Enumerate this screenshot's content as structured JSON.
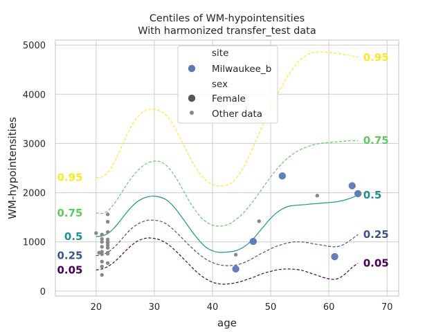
{
  "chart_data": {
    "type": "line",
    "title": "Centiles of WM-hypointensities",
    "subtitle": "With harmonized transfer_test data",
    "xlabel": "age",
    "ylabel": "WM-hypointensities",
    "xlim": [
      13,
      72
    ],
    "ylim": [
      -100,
      5100
    ],
    "xticks": [
      20,
      30,
      40,
      50,
      60,
      70
    ],
    "yticks": [
      0,
      1000,
      2000,
      3000,
      4000,
      5000
    ],
    "grid": true,
    "centiles": [
      {
        "label": "0.05",
        "color": "#440154",
        "dash": true,
        "x": [
          20,
          21,
          22,
          23,
          24,
          25,
          26,
          27,
          28,
          29,
          30,
          31,
          32,
          33,
          34,
          35,
          36,
          37,
          38,
          39,
          40,
          41,
          42,
          43,
          44,
          45,
          46,
          47,
          48,
          49,
          50,
          51,
          52,
          53,
          54,
          55,
          56,
          57,
          58,
          59,
          60,
          61,
          62,
          63,
          64,
          65
        ],
        "y": [
          430,
          450,
          500,
          580,
          690,
          810,
          920,
          1010,
          1060,
          1080,
          1070,
          1040,
          980,
          890,
          780,
          660,
          540,
          420,
          320,
          240,
          180,
          150,
          140,
          150,
          170,
          200,
          240,
          280,
          330,
          370,
          400,
          430,
          445,
          450,
          445,
          430,
          400,
          360,
          320,
          280,
          250,
          240,
          280,
          370,
          480,
          570
        ]
      },
      {
        "label": "0.25",
        "color": "#3b528b",
        "dash": true,
        "x": [
          20,
          21,
          22,
          23,
          24,
          25,
          26,
          27,
          28,
          29,
          30,
          31,
          32,
          33,
          34,
          35,
          36,
          37,
          38,
          39,
          40,
          41,
          42,
          43,
          44,
          45,
          46,
          47,
          48,
          49,
          50,
          51,
          52,
          53,
          54,
          55,
          56,
          57,
          58,
          59,
          60,
          61,
          62,
          63,
          64,
          65
        ],
        "y": [
          720,
          740,
          790,
          880,
          1000,
          1140,
          1260,
          1350,
          1410,
          1440,
          1440,
          1420,
          1370,
          1280,
          1170,
          1050,
          930,
          820,
          720,
          640,
          580,
          540,
          520,
          520,
          530,
          560,
          610,
          670,
          740,
          800,
          860,
          910,
          950,
          980,
          1000,
          1000,
          990,
          970,
          950,
          930,
          910,
          900,
          920,
          980,
          1060,
          1150
        ]
      },
      {
        "label": "0.5",
        "color": "#21908d",
        "dash": false,
        "x": [
          20,
          21,
          22,
          23,
          24,
          25,
          26,
          27,
          28,
          29,
          30,
          31,
          32,
          33,
          34,
          35,
          36,
          37,
          38,
          39,
          40,
          41,
          42,
          43,
          44,
          45,
          46,
          47,
          48,
          49,
          50,
          51,
          52,
          53,
          54,
          55,
          56,
          57,
          58,
          59,
          60,
          61,
          62,
          63,
          64,
          65
        ],
        "y": [
          1110,
          1120,
          1170,
          1270,
          1410,
          1560,
          1700,
          1810,
          1880,
          1920,
          1930,
          1910,
          1860,
          1760,
          1620,
          1460,
          1290,
          1130,
          990,
          880,
          820,
          790,
          790,
          800,
          820,
          870,
          950,
          1060,
          1200,
          1340,
          1480,
          1590,
          1670,
          1720,
          1740,
          1750,
          1760,
          1770,
          1780,
          1790,
          1800,
          1810,
          1830,
          1860,
          1900,
          1950
        ]
      },
      {
        "label": "0.75",
        "color": "#5ec962",
        "dash": true,
        "x": [
          20,
          21,
          22,
          23,
          24,
          25,
          26,
          27,
          28,
          29,
          30,
          31,
          32,
          33,
          34,
          35,
          36,
          37,
          38,
          39,
          40,
          41,
          42,
          43,
          44,
          45,
          46,
          47,
          48,
          49,
          50,
          51,
          52,
          53,
          54,
          55,
          56,
          57,
          58,
          59,
          60,
          61,
          62,
          63,
          64,
          65
        ],
        "y": [
          1590,
          1580,
          1630,
          1760,
          1930,
          2120,
          2290,
          2430,
          2540,
          2610,
          2640,
          2630,
          2560,
          2430,
          2250,
          2040,
          1830,
          1650,
          1500,
          1400,
          1340,
          1320,
          1330,
          1370,
          1450,
          1550,
          1680,
          1830,
          1990,
          2160,
          2320,
          2470,
          2600,
          2710,
          2800,
          2870,
          2920,
          2960,
          2990,
          3010,
          3020,
          3030,
          3040,
          3050,
          3055,
          3060
        ]
      },
      {
        "label": "0.95",
        "color": "#fde725",
        "dash": true,
        "x": [
          20,
          21,
          22,
          23,
          24,
          25,
          26,
          27,
          28,
          29,
          30,
          31,
          32,
          33,
          34,
          35,
          36,
          37,
          38,
          39,
          40,
          41,
          42,
          43,
          44,
          45,
          46,
          47,
          48,
          49,
          50,
          51,
          52,
          53,
          54,
          55,
          56,
          57,
          58,
          59,
          60,
          61,
          62,
          63,
          64,
          65
        ],
        "y": [
          2310,
          2320,
          2410,
          2590,
          2830,
          3100,
          3340,
          3520,
          3640,
          3690,
          3690,
          3660,
          3580,
          3430,
          3220,
          2980,
          2740,
          2530,
          2360,
          2240,
          2170,
          2140,
          2140,
          2180,
          2280,
          2450,
          2670,
          2930,
          3200,
          3470,
          3720,
          3960,
          4180,
          4380,
          4550,
          4690,
          4780,
          4840,
          4860,
          4860,
          4850,
          4840,
          4820,
          4800,
          4780,
          4750
        ]
      }
    ],
    "series": [
      {
        "name": "Milwaukee_b",
        "color": "#5a78b4",
        "x": [
          44,
          47,
          52,
          61,
          64,
          65
        ],
        "y": [
          450,
          1010,
          2340,
          700,
          2140,
          1980
        ]
      },
      {
        "name": "Other data",
        "color": "#888888",
        "x": [
          20,
          20.5,
          21,
          21,
          21,
          21,
          21,
          21,
          21,
          21,
          21,
          22,
          22,
          22,
          22,
          22,
          22,
          22,
          22,
          22,
          22,
          22,
          44,
          48,
          58
        ],
        "y": [
          1180,
          780,
          1150,
          1060,
          1000,
          900,
          800,
          750,
          600,
          500,
          330,
          1560,
          1410,
          1200,
          1050,
          980,
          930,
          880,
          780,
          760,
          570,
          1000,
          740,
          1420,
          1940
        ]
      }
    ],
    "legend": {
      "position": "top-center",
      "entries": [
        {
          "text": "site",
          "marker": "none"
        },
        {
          "text": "Milwaukee_b",
          "marker": "circle-blue"
        },
        {
          "text": "sex",
          "marker": "none"
        },
        {
          "text": "Female",
          "marker": "circle-dark"
        },
        {
          "text": "Other data",
          "marker": "circle-grey-small"
        }
      ]
    }
  }
}
